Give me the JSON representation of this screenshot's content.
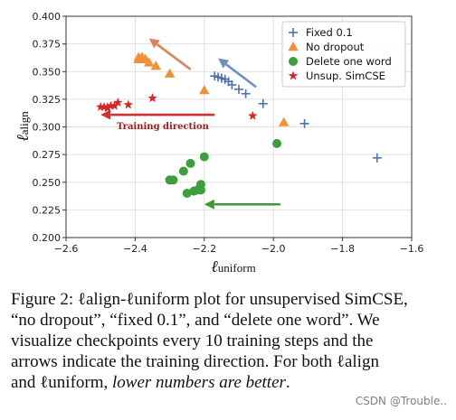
{
  "chart_data": {
    "type": "scatter",
    "xlabel": "ℓuniform",
    "ylabel": "ℓalign",
    "xlim": [
      -2.6,
      -1.6
    ],
    "ylim": [
      0.2,
      0.4
    ],
    "xticks": [
      -2.6,
      -2.4,
      -2.2,
      -2.0,
      -1.8,
      -1.6
    ],
    "yticks": [
      0.2,
      0.225,
      0.25,
      0.275,
      0.3,
      0.325,
      0.35,
      0.375,
      0.4
    ],
    "xtick_labels": [
      "−2.6",
      "−2.4",
      "−2.2",
      "−2.0",
      "−1.8",
      "−1.6"
    ],
    "ytick_labels": [
      "0.200",
      "0.225",
      "0.250",
      "0.275",
      "0.300",
      "0.325",
      "0.350",
      "0.375",
      "0.400"
    ],
    "grid": true,
    "legend_position": "top-right",
    "series": [
      {
        "name": "Fixed 0.1",
        "marker": "plus",
        "color": "#4c72b0",
        "x": [
          -1.7,
          -1.91,
          -2.03,
          -2.08,
          -2.1,
          -2.12,
          -2.13,
          -2.14,
          -2.15,
          -2.16,
          -2.17
        ],
        "y": [
          0.272,
          0.303,
          0.321,
          0.33,
          0.334,
          0.338,
          0.341,
          0.343,
          0.344,
          0.345,
          0.346
        ]
      },
      {
        "name": "No dropout",
        "marker": "triangle",
        "color": "#f0903a",
        "x": [
          -1.97,
          -2.2,
          -2.3,
          -2.34,
          -2.36,
          -2.37,
          -2.38,
          -2.38,
          -2.39,
          -2.39
        ],
        "y": [
          0.304,
          0.333,
          0.348,
          0.355,
          0.358,
          0.361,
          0.362,
          0.363,
          0.361,
          0.363
        ]
      },
      {
        "name": "Delete one word",
        "marker": "circle",
        "color": "#3ba03b",
        "x": [
          -1.99,
          -2.2,
          -2.24,
          -2.26,
          -2.29,
          -2.3,
          -2.21,
          -2.22,
          -2.23,
          -2.25,
          -2.21
        ],
        "y": [
          0.285,
          0.273,
          0.267,
          0.26,
          0.252,
          0.252,
          0.248,
          0.243,
          0.242,
          0.24,
          0.243
        ]
      },
      {
        "name": "Unsup. SimCSE",
        "marker": "star",
        "color": "#d62728",
        "x": [
          -2.06,
          -2.35,
          -2.42,
          -2.45,
          -2.46,
          -2.47,
          -2.48,
          -2.48,
          -2.49,
          -2.5
        ],
        "y": [
          0.31,
          0.326,
          0.32,
          0.322,
          0.319,
          0.319,
          0.318,
          0.317,
          0.318,
          0.318
        ]
      }
    ],
    "arrows": [
      {
        "name": "orange-arrow",
        "color": "#d9845a",
        "from": [
          -2.24,
          0.352
        ],
        "to": [
          -2.36,
          0.38
        ]
      },
      {
        "name": "blue-arrow",
        "color": "#6f8fbf",
        "from": [
          -2.05,
          0.336
        ],
        "to": [
          -2.16,
          0.362
        ]
      },
      {
        "name": "red-arrow",
        "color": "#cc3333",
        "from": [
          -2.17,
          0.311
        ],
        "to": [
          -2.5,
          0.311
        ]
      },
      {
        "name": "green-arrow",
        "color": "#3a9a3a",
        "from": [
          -1.98,
          0.23
        ],
        "to": [
          -2.2,
          0.23
        ]
      }
    ],
    "annotation": {
      "text": "Training direction",
      "color": "#9b1c1c",
      "x": -2.32,
      "y": 0.298
    }
  },
  "caption": {
    "line1": "Figure 2: ℓalign-ℓuniform plot for unsupervised SimCSE,",
    "line2": "“no dropout”, “fixed 0.1”, and “delete one word”. We",
    "line3": "visualize checkpoints every 10 training steps and the",
    "line4": "arrows indicate the training direction. For both ℓalign",
    "line5_normal": "and ℓuniform, ",
    "line5_italic": "lower numbers are better",
    "line5_end": "."
  },
  "watermark": "CSDN @Trouble.."
}
